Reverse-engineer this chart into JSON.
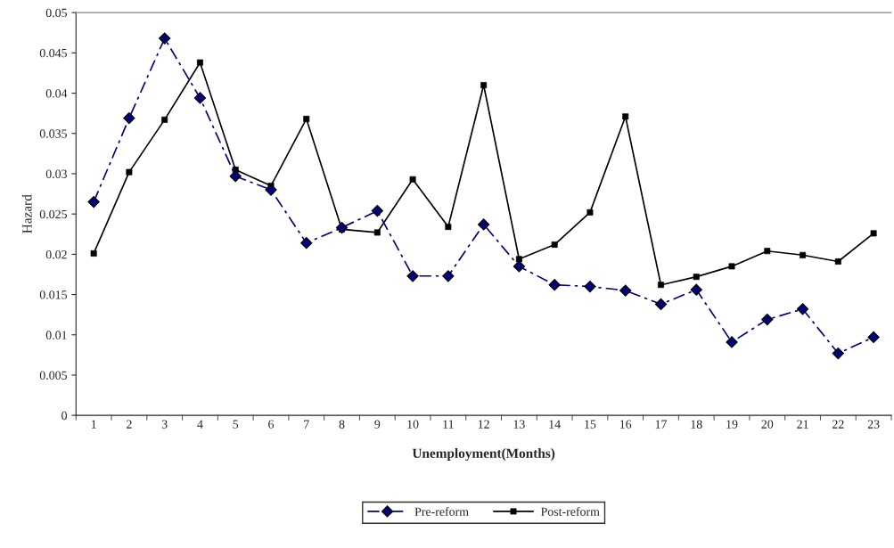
{
  "chart_data": {
    "type": "line",
    "xlabel": "Unemployment(Months)",
    "ylabel": "Hazard",
    "categories": [
      "1",
      "2",
      "3",
      "4",
      "5",
      "6",
      "7",
      "8",
      "9",
      "10",
      "11",
      "12",
      "13",
      "14",
      "15",
      "16",
      "17",
      "18",
      "19",
      "20",
      "21",
      "22",
      "23"
    ],
    "series": [
      {
        "name": "Pre-reform",
        "color": "#000080",
        "line_style": "dashed",
        "marker": "diamond",
        "values": [
          0.0265,
          0.0369,
          0.0468,
          0.0394,
          0.0297,
          0.028,
          0.0214,
          0.0233,
          0.0254,
          0.0173,
          0.0173,
          0.0237,
          0.0185,
          0.0162,
          0.016,
          0.0155,
          0.0138,
          0.0156,
          0.0091,
          0.0119,
          0.0132,
          0.0077,
          0.0097
        ]
      },
      {
        "name": "Post-reform",
        "color": "#000000",
        "line_style": "solid",
        "marker": "square",
        "values": [
          0.0201,
          0.0302,
          0.0367,
          0.0438,
          0.0305,
          0.0285,
          0.0368,
          0.0231,
          0.0227,
          0.0293,
          0.0234,
          0.041,
          0.0194,
          0.0212,
          0.0252,
          0.0371,
          0.0162,
          0.0172,
          0.0185,
          0.0204,
          0.0199,
          0.0191,
          0.0226
        ]
      }
    ],
    "ylim": [
      0,
      0.05
    ],
    "yticks": [
      0,
      0.005,
      0.01,
      0.015,
      0.02,
      0.025,
      0.03,
      0.035,
      0.04,
      0.045,
      0.05
    ],
    "grid": false,
    "legend": "bottom"
  }
}
